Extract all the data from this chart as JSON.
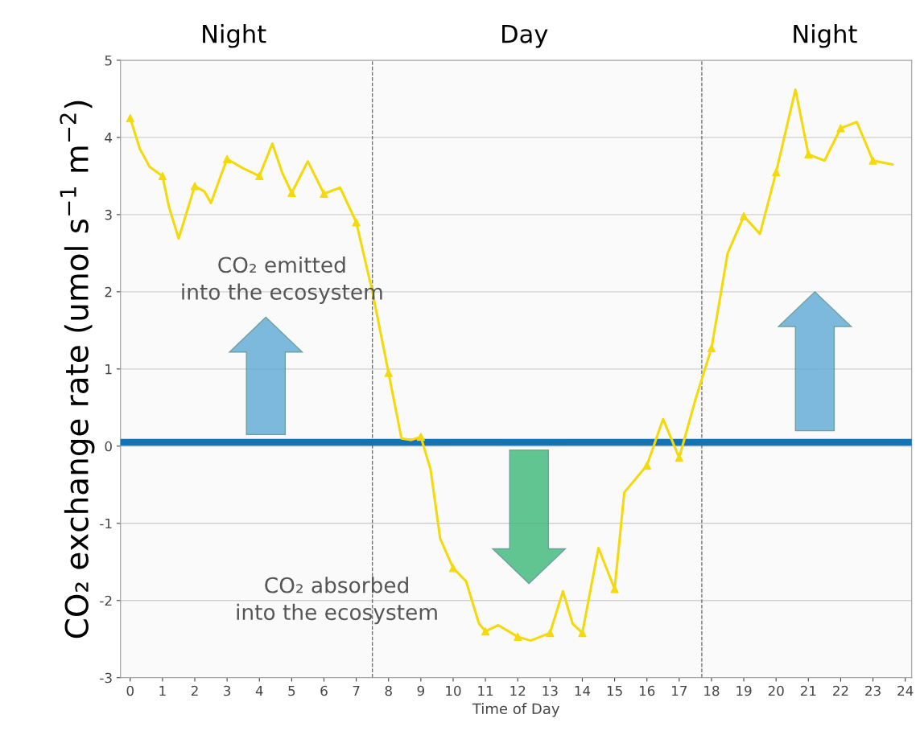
{
  "chart_data": {
    "type": "line",
    "xlabel": "Time of Day",
    "ylabel": "CO₂ exchange rate (umol s$^{−1}$ m$^{−2}$)",
    "xlim": [
      -0.3,
      24.2
    ],
    "ylim": [
      -3,
      5
    ],
    "xticks": [
      0,
      1,
      2,
      3,
      4,
      5,
      6,
      7,
      8,
      9,
      10,
      11,
      12,
      13,
      14,
      15,
      16,
      17,
      18,
      19,
      20,
      21,
      22,
      23,
      24
    ],
    "yticks": [
      -3,
      -2,
      -1,
      0,
      1,
      2,
      3,
      4,
      5
    ],
    "grid": "y",
    "legend": false,
    "series": [
      {
        "color": "#f5d90a",
        "marker": "none",
        "x": [
          0,
          0.3,
          0.6,
          1,
          1.2,
          1.5,
          1.8,
          2,
          2.3,
          2.5,
          2.8,
          3,
          3.5,
          4,
          4.4,
          4.7,
          5,
          5.5,
          6,
          6.5,
          7,
          7.5,
          8,
          8.4,
          8.7,
          9,
          9.3,
          9.6,
          10,
          10.4,
          10.8,
          11,
          11.4,
          12,
          12.4,
          13,
          13.4,
          13.7,
          14,
          14.5,
          15,
          15.3,
          16,
          16.5,
          17,
          17.5,
          18,
          18.5,
          19,
          19.5,
          20,
          20.6,
          21,
          21.5,
          22,
          22.5,
          22.8,
          23,
          23.6
        ],
        "values": [
          4.25,
          3.85,
          3.62,
          3.5,
          3.1,
          2.69,
          3.1,
          3.37,
          3.3,
          3.15,
          3.5,
          3.72,
          3.6,
          3.5,
          3.92,
          3.55,
          3.28,
          3.69,
          3.27,
          3.35,
          2.9,
          2.0,
          0.95,
          0.1,
          0.08,
          0.12,
          -0.3,
          -1.2,
          -1.58,
          -1.75,
          -2.3,
          -2.4,
          -2.32,
          -2.47,
          -2.52,
          -2.42,
          -1.88,
          -2.3,
          -2.42,
          -1.32,
          -1.85,
          -0.6,
          -0.25,
          0.35,
          -0.15,
          0.6,
          1.27,
          2.5,
          2.98,
          2.75,
          3.55,
          4.62,
          3.78,
          3.7,
          4.12,
          4.2,
          3.9,
          3.7,
          3.65
        ]
      },
      {
        "type": "scatter",
        "color": "#f5d90a",
        "marker": "triangle",
        "x": [
          0,
          1,
          2,
          3,
          4,
          5,
          6,
          7,
          8,
          9,
          10,
          11,
          12,
          13,
          14,
          15,
          16,
          17,
          18,
          19,
          20,
          21,
          22,
          23
        ],
        "values": [
          4.25,
          3.5,
          3.37,
          3.72,
          3.5,
          3.28,
          3.27,
          2.9,
          0.95,
          0.12,
          -1.58,
          -2.4,
          -2.47,
          -2.42,
          -2.42,
          -1.85,
          -0.25,
          -0.15,
          1.27,
          2.98,
          3.55,
          3.78,
          4.12,
          3.7
        ]
      }
    ],
    "ref_lines": [
      {
        "axis": "y",
        "value": 0.05,
        "color": "#0f75b8",
        "line_style": "solid"
      },
      {
        "axis": "x",
        "value": 7.5,
        "color": "#666666",
        "line_style": "dashed"
      },
      {
        "axis": "x",
        "value": 17.7,
        "color": "#666666",
        "line_style": "dashed"
      }
    ],
    "annotations": [
      "Night",
      "Day",
      "Night",
      "CO₂ emitted\ninto the ecosystem",
      "CO₂ absorbed\ninto the ecosystem"
    ]
  }
}
